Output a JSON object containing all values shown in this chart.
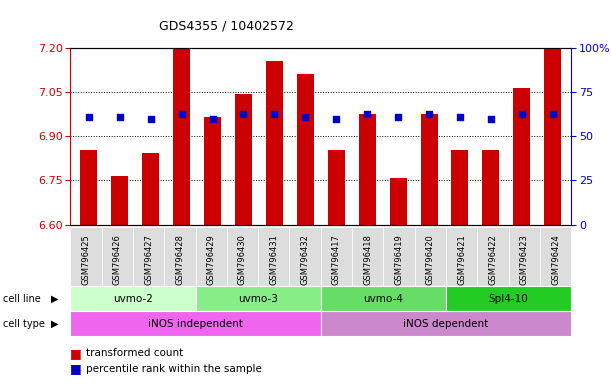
{
  "title": "GDS4355 / 10402572",
  "samples": [
    "GSM796425",
    "GSM796426",
    "GSM796427",
    "GSM796428",
    "GSM796429",
    "GSM796430",
    "GSM796431",
    "GSM796432",
    "GSM796417",
    "GSM796418",
    "GSM796419",
    "GSM796420",
    "GSM796421",
    "GSM796422",
    "GSM796423",
    "GSM796424"
  ],
  "bar_values": [
    6.855,
    6.765,
    6.845,
    7.195,
    6.965,
    7.045,
    7.155,
    7.11,
    6.855,
    6.975,
    6.76,
    6.975,
    6.855,
    6.855,
    7.065,
    7.195
  ],
  "percentile_values": [
    6.965,
    6.965,
    6.96,
    6.975,
    6.96,
    6.975,
    6.975,
    6.965,
    6.96,
    6.975,
    6.965,
    6.975,
    6.965,
    6.96,
    6.975,
    6.975
  ],
  "bar_color": "#cc0000",
  "dot_color": "#0000cc",
  "ylim_left": [
    6.6,
    7.2
  ],
  "ylim_right": [
    0,
    100
  ],
  "yticks_left": [
    6.6,
    6.75,
    6.9,
    7.05,
    7.2
  ],
  "yticks_right": [
    0,
    25,
    50,
    75,
    100
  ],
  "grid_values": [
    6.75,
    6.9,
    7.05
  ],
  "cell_lines": [
    {
      "label": "uvmo-2",
      "start": 0,
      "end": 3,
      "color": "#ccffcc"
    },
    {
      "label": "uvmo-3",
      "start": 4,
      "end": 7,
      "color": "#88ee88"
    },
    {
      "label": "uvmo-4",
      "start": 8,
      "end": 11,
      "color": "#66dd66"
    },
    {
      "label": "Spl4-10",
      "start": 12,
      "end": 15,
      "color": "#22cc22"
    }
  ],
  "cell_types": [
    {
      "label": "iNOS independent",
      "start": 0,
      "end": 7,
      "color": "#ee66ee"
    },
    {
      "label": "iNOS dependent",
      "start": 8,
      "end": 15,
      "color": "#cc88cc"
    }
  ],
  "legend_bar_label": "transformed count",
  "legend_dot_label": "percentile rank within the sample",
  "ylabel_left_color": "#cc0000",
  "ylabel_right_color": "#0000cc",
  "cell_line_label": "cell line",
  "cell_type_label": "cell type",
  "sample_bg_color": "#dddddd"
}
